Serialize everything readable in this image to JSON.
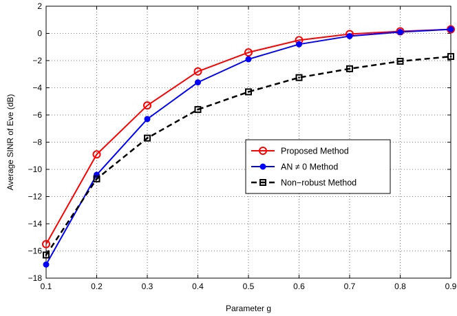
{
  "chart_data": {
    "type": "line",
    "title": "",
    "xlabel": "Parameter g",
    "ylabel": "Average SINR of Eve (dB)",
    "xlim": [
      0.1,
      0.9
    ],
    "ylim": [
      -18,
      2
    ],
    "xticks": [
      "0.1",
      "0.2",
      "0.3",
      "0.4",
      "0.5",
      "0.6",
      "0.7",
      "0.8",
      "0.9"
    ],
    "yticks": [
      "2",
      "0",
      "−2",
      "−4",
      "−6",
      "−8",
      "−10",
      "−12",
      "−14",
      "−16",
      "−18"
    ],
    "grid": true,
    "legend_position": "middle-right",
    "x": [
      0.1,
      0.2,
      0.3,
      0.4,
      0.5,
      0.6,
      0.7,
      0.8,
      0.9
    ],
    "series": [
      {
        "name": "Proposed Method",
        "values": [
          -15.5,
          -8.9,
          -5.3,
          -2.8,
          -1.4,
          -0.5,
          -0.05,
          0.15,
          0.3
        ],
        "color": "#ff0000",
        "marker": "circle-open",
        "line_style": "solid"
      },
      {
        "name": "AN ≠ 0 Method",
        "values": [
          -17.0,
          -10.4,
          -6.3,
          -3.6,
          -1.9,
          -0.8,
          -0.2,
          0.1,
          0.3
        ],
        "color": "#0000ff",
        "marker": "circle-filled",
        "line_style": "solid"
      },
      {
        "name": "Non−robust Method",
        "values": [
          -16.3,
          -10.7,
          -7.7,
          -5.6,
          -4.3,
          -3.25,
          -2.6,
          -2.05,
          -1.7
        ],
        "color": "#000000",
        "marker": "square-open",
        "line_style": "dashed"
      }
    ]
  }
}
